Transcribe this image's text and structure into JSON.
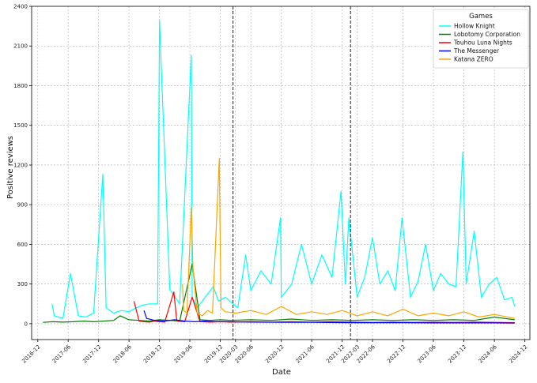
{
  "chart_data": {
    "type": "line",
    "title": "",
    "xlabel": "Date",
    "ylabel": "Positive reviews",
    "ylim": [
      -120,
      2400
    ],
    "xlim": [
      "2016-10-25",
      "2024-12-31"
    ],
    "y_ticks": [
      0,
      300,
      600,
      900,
      1200,
      1500,
      1800,
      2100,
      2400
    ],
    "y_tick_labels": [
      "0",
      "300",
      "600",
      "900",
      "1200",
      "1500",
      "1800",
      "2100",
      "2400"
    ],
    "x_ticks": [
      "2016-12-01",
      "2017-06-01",
      "2017-12-01",
      "2018-06-01",
      "2018-12-01",
      "2019-06-01",
      "2019-12-01",
      "2020-03-01",
      "2020-06-01",
      "2020-12-01",
      "2021-06-01",
      "2021-12-01",
      "2022-03-01",
      "2022-06-01",
      "2022-12-01",
      "2023-06-01",
      "2023-12-01",
      "2024-06-01",
      "2024-12-01"
    ],
    "x_tick_labels": [
      "2016-12",
      "2017-06",
      "2017-12",
      "2018-06",
      "2018-12",
      "2019-06",
      "2019-12",
      "2020-03",
      "2020-06",
      "2020-12",
      "2021-06",
      "2021-12",
      "2022-03",
      "2022-06",
      "2022-12",
      "2023-06",
      "2023-12",
      "2024-06",
      "2024-12"
    ],
    "grid": true,
    "legend": {
      "title": "Games",
      "position": "top-right"
    },
    "vlines": [
      "2020-02-15",
      "2022-01-20"
    ],
    "series": [
      {
        "name": "Hollow Knight",
        "color": "#00ffff",
        "x": [
          "2017-02-24",
          "2017-03-10",
          "2017-05-01",
          "2017-06-15",
          "2017-08-01",
          "2017-09-15",
          "2017-11-01",
          "2017-12-26",
          "2018-01-15",
          "2018-03-01",
          "2018-04-15",
          "2018-06-01",
          "2018-07-15",
          "2018-08-20",
          "2018-10-01",
          "2018-11-20",
          "2018-12-01",
          "2019-02-01",
          "2019-04-01",
          "2019-06-10",
          "2019-06-15",
          "2019-07-15",
          "2019-09-01",
          "2019-10-20",
          "2019-11-20",
          "2019-12-31",
          "2020-03-15",
          "2020-05-01",
          "2020-06-01",
          "2020-08-01",
          "2020-10-01",
          "2020-11-26",
          "2020-12-01",
          "2021-02-01",
          "2021-04-01",
          "2021-06-01",
          "2021-08-01",
          "2021-10-01",
          "2021-11-24",
          "2021-12-20",
          "2022-01-10",
          "2022-03-01",
          "2022-04-15",
          "2022-06-01",
          "2022-07-15",
          "2022-09-01",
          "2022-10-15",
          "2022-11-25",
          "2023-01-15",
          "2023-03-01",
          "2023-04-15",
          "2023-06-01",
          "2023-07-15",
          "2023-09-01",
          "2023-10-15",
          "2023-11-25",
          "2023-12-15",
          "2024-02-01",
          "2024-03-15",
          "2024-05-01",
          "2024-06-15",
          "2024-08-01",
          "2024-09-15",
          "2024-10-01"
        ],
        "y": [
          150,
          60,
          40,
          380,
          60,
          50,
          80,
          1130,
          120,
          80,
          100,
          90,
          120,
          140,
          150,
          150,
          2290,
          260,
          150,
          2030,
          200,
          120,
          200,
          280,
          170,
          200,
          120,
          520,
          250,
          400,
          300,
          800,
          200,
          300,
          600,
          300,
          520,
          350,
          1000,
          300,
          800,
          200,
          350,
          650,
          300,
          400,
          250,
          800,
          200,
          320,
          600,
          250,
          380,
          300,
          280,
          1300,
          300,
          700,
          200,
          300,
          350,
          180,
          200,
          130
        ]
      },
      {
        "name": "Lobotomy Corporation",
        "color": "#008000",
        "x": [
          "2017-01-01",
          "2017-03-01",
          "2017-05-01",
          "2017-07-01",
          "2017-09-01",
          "2017-11-01",
          "2018-01-01",
          "2018-03-01",
          "2018-04-09",
          "2018-06-01",
          "2018-08-01",
          "2018-10-01",
          "2018-12-01",
          "2019-02-01",
          "2019-04-01",
          "2019-06-15",
          "2019-08-01",
          "2019-10-01",
          "2019-12-01",
          "2020-02-01",
          "2020-06-01",
          "2020-10-01",
          "2021-02-01",
          "2021-06-01",
          "2021-10-01",
          "2022-02-01",
          "2022-06-01",
          "2022-10-01",
          "2023-02-01",
          "2023-06-01",
          "2023-10-01",
          "2024-02-01",
          "2024-06-01",
          "2024-10-01"
        ],
        "y": [
          10,
          15,
          12,
          15,
          20,
          15,
          20,
          25,
          60,
          30,
          25,
          20,
          30,
          25,
          20,
          450,
          30,
          25,
          30,
          25,
          30,
          25,
          35,
          25,
          30,
          25,
          30,
          25,
          30,
          25,
          30,
          25,
          50,
          30
        ]
      },
      {
        "name": "Touhou Luna Nights",
        "color": "#ff0000",
        "x": [
          "2018-07-01",
          "2018-08-01",
          "2018-09-01",
          "2018-10-01",
          "2018-11-01",
          "2018-12-01",
          "2019-01-01",
          "2019-02-25",
          "2019-03-15",
          "2019-05-01",
          "2019-06-15",
          "2019-08-01",
          "2019-10-01",
          "2019-12-01",
          "2020-02-01",
          "2020-06-01",
          "2020-10-01",
          "2021-02-01",
          "2021-06-01",
          "2021-10-01",
          "2022-02-01",
          "2022-06-01",
          "2022-10-01",
          "2023-02-01",
          "2023-06-01",
          "2023-10-01",
          "2024-02-01",
          "2024-06-01",
          "2024-10-01"
        ],
        "y": [
          170,
          20,
          15,
          12,
          20,
          15,
          12,
          240,
          20,
          15,
          200,
          15,
          12,
          15,
          12,
          15,
          12,
          15,
          12,
          15,
          12,
          10,
          12,
          10,
          12,
          10,
          12,
          10,
          8
        ]
      },
      {
        "name": "The Messenger",
        "color": "#0000ff",
        "x": [
          "2018-08-30",
          "2018-09-15",
          "2018-11-01",
          "2019-01-01",
          "2019-03-01",
          "2019-05-01",
          "2019-07-01",
          "2019-09-01",
          "2019-11-01",
          "2020-01-01",
          "2020-06-01",
          "2021-01-01",
          "2021-06-01",
          "2022-01-01",
          "2022-06-01",
          "2023-01-01",
          "2023-06-01",
          "2024-01-01",
          "2024-06-01",
          "2024-10-01"
        ],
        "y": [
          100,
          40,
          25,
          20,
          30,
          20,
          15,
          20,
          15,
          15,
          12,
          10,
          10,
          8,
          8,
          8,
          6,
          6,
          6,
          5
        ]
      },
      {
        "name": "Katana ZERO",
        "color": "#ffa500",
        "x": [
          "2019-04-18",
          "2019-04-25",
          "2019-05-15",
          "2019-06-10",
          "2019-06-20",
          "2019-07-15",
          "2019-08-15",
          "2019-09-15",
          "2019-10-15",
          "2019-11-25",
          "2019-12-05",
          "2019-12-31",
          "2020-03-01",
          "2020-06-01",
          "2020-09-01",
          "2020-12-01",
          "2021-03-01",
          "2021-06-01",
          "2021-09-01",
          "2021-12-01",
          "2022-03-01",
          "2022-06-01",
          "2022-09-01",
          "2022-12-01",
          "2023-03-01",
          "2023-06-01",
          "2023-09-01",
          "2023-12-01",
          "2024-03-01",
          "2024-06-01",
          "2024-10-01"
        ],
        "y": [
          300,
          100,
          80,
          880,
          420,
          80,
          60,
          100,
          80,
          1250,
          120,
          90,
          80,
          100,
          70,
          130,
          70,
          90,
          70,
          100,
          60,
          90,
          60,
          110,
          60,
          80,
          60,
          90,
          50,
          70,
          40
        ]
      }
    ]
  }
}
